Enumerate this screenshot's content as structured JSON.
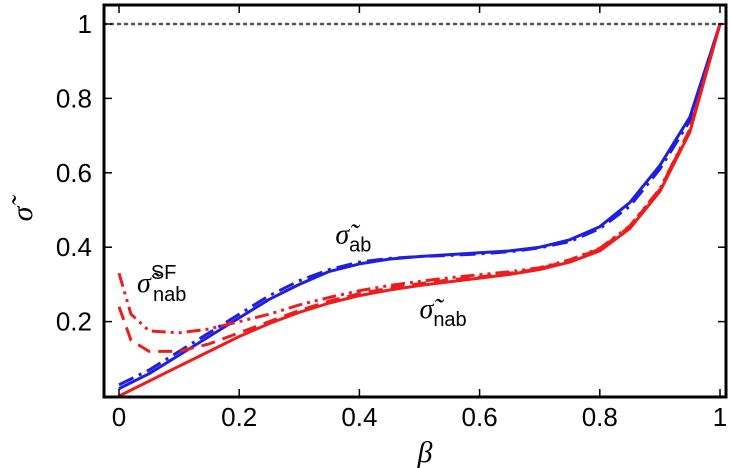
{
  "chart_data": {
    "type": "line",
    "title": "",
    "xlabel": "β",
    "ylabel": "σ̃",
    "xlim": [
      0,
      1
    ],
    "ylim": [
      0,
      1
    ],
    "x_ticks": [
      {
        "value": 0,
        "label": "0"
      },
      {
        "value": 0.2,
        "label": "0.2"
      },
      {
        "value": 0.4,
        "label": "0.4"
      },
      {
        "value": 0.6,
        "label": "0.6"
      },
      {
        "value": 0.8,
        "label": "0.8"
      },
      {
        "value": 1,
        "label": "1"
      }
    ],
    "y_ticks": [
      {
        "value": 0.2,
        "label": "0.2"
      },
      {
        "value": 0.4,
        "label": "0.4"
      },
      {
        "value": 0.6,
        "label": "0.6"
      },
      {
        "value": 0.8,
        "label": "0.8"
      },
      {
        "value": 1,
        "label": "1"
      }
    ],
    "grid": false,
    "reference_line": {
      "y": 1,
      "style": "dotted",
      "color": "#555555"
    },
    "series": [
      {
        "style": "solid",
        "color": "#1f1fdd",
        "x": [
          0,
          0.05,
          0.1,
          0.15,
          0.2,
          0.25,
          0.3,
          0.35,
          0.4,
          0.45,
          0.5,
          0.55,
          0.6,
          0.65,
          0.7,
          0.75,
          0.8,
          0.85,
          0.9,
          0.95,
          1
        ],
        "y": [
          0.02,
          0.06,
          0.11,
          0.16,
          0.21,
          0.26,
          0.3,
          0.335,
          0.355,
          0.368,
          0.375,
          0.38,
          0.385,
          0.39,
          0.4,
          0.42,
          0.455,
          0.52,
          0.62,
          0.75,
          1
        ]
      },
      {
        "style": "dashdot",
        "color": "#1f1fdd",
        "x": [
          0,
          0.05,
          0.1,
          0.15,
          0.2,
          0.25,
          0.3,
          0.35,
          0.4,
          0.45,
          0.5,
          0.55,
          0.6,
          0.65,
          0.7,
          0.75,
          0.8,
          0.85,
          0.9,
          0.95,
          1
        ],
        "y": [
          0.03,
          0.07,
          0.12,
          0.17,
          0.22,
          0.27,
          0.31,
          0.34,
          0.36,
          0.37,
          0.375,
          0.378,
          0.382,
          0.388,
          0.398,
          0.415,
          0.45,
          0.51,
          0.61,
          0.74,
          1
        ]
      },
      {
        "style": "solid",
        "color": "#ee1c1c",
        "x": [
          0,
          0.05,
          0.1,
          0.15,
          0.2,
          0.25,
          0.3,
          0.35,
          0.4,
          0.45,
          0.5,
          0.55,
          0.6,
          0.65,
          0.7,
          0.75,
          0.8,
          0.85,
          0.9,
          0.95,
          1
        ],
        "y": [
          0,
          0.04,
          0.08,
          0.12,
          0.16,
          0.195,
          0.225,
          0.25,
          0.27,
          0.285,
          0.297,
          0.307,
          0.317,
          0.327,
          0.34,
          0.36,
          0.39,
          0.45,
          0.55,
          0.71,
          1
        ]
      },
      {
        "style": "dashed",
        "color": "#ee1c1c",
        "x": [
          0,
          0.02,
          0.05,
          0.1,
          0.15,
          0.2,
          0.25,
          0.3,
          0.35,
          0.4,
          0.45,
          0.5,
          0.55,
          0.6,
          0.65,
          0.7,
          0.75,
          0.8,
          0.85,
          0.9,
          0.95,
          1
        ],
        "y": [
          0.24,
          0.15,
          0.12,
          0.12,
          0.14,
          0.17,
          0.2,
          0.23,
          0.255,
          0.275,
          0.29,
          0.302,
          0.312,
          0.32,
          0.33,
          0.342,
          0.365,
          0.395,
          0.455,
          0.555,
          0.715,
          1
        ]
      },
      {
        "style": "dashdotdot",
        "color": "#ee1c1c",
        "x": [
          0,
          0.02,
          0.05,
          0.1,
          0.15,
          0.2,
          0.25,
          0.3,
          0.35,
          0.4,
          0.45,
          0.5,
          0.55,
          0.6,
          0.65,
          0.7,
          0.75,
          0.8,
          0.85,
          0.9,
          0.95,
          1
        ],
        "y": [
          0.33,
          0.22,
          0.175,
          0.17,
          0.18,
          0.2,
          0.22,
          0.245,
          0.265,
          0.283,
          0.297,
          0.308,
          0.318,
          0.326,
          0.334,
          0.345,
          0.366,
          0.397,
          0.457,
          0.557,
          0.717,
          1
        ]
      }
    ],
    "annotations": [
      {
        "base": "σ̃",
        "sub": "ab",
        "sup": "",
        "x": 0.36,
        "y": 0.41
      },
      {
        "base": "σ̃",
        "sub": "nab",
        "sup": "",
        "x": 0.5,
        "y": 0.21
      },
      {
        "base": "σ̃",
        "sub": "nab",
        "sup": "SF",
        "x": 0.03,
        "y": 0.28
      }
    ]
  }
}
